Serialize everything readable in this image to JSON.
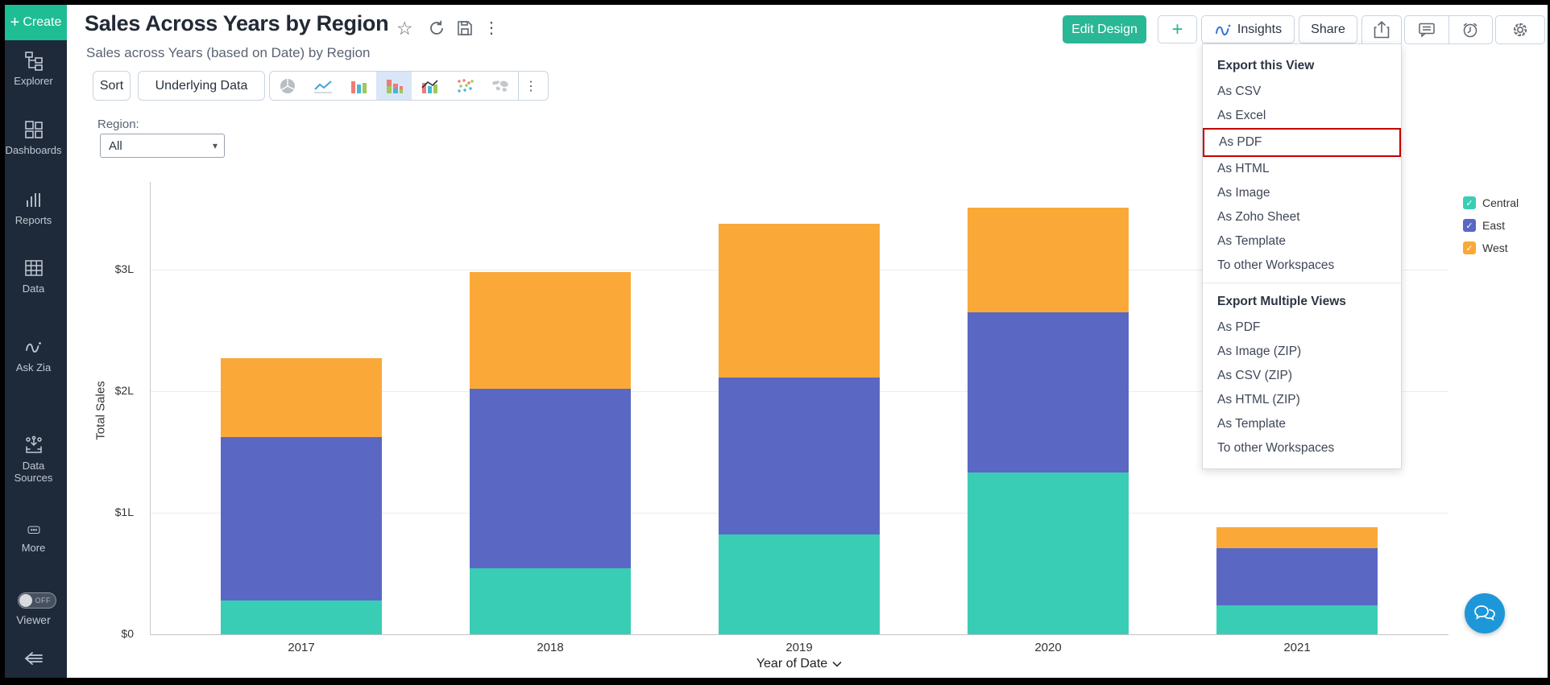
{
  "icons": {
    "plus": "+",
    "star": "☆",
    "kebab": "⋮",
    "caret_down": "▾",
    "check": "✓"
  },
  "colors": {
    "accent_teal": "#26B795",
    "sidebar_bg": "#1E2A3A",
    "selected_tile": "#D9E6F7",
    "chat_blue": "#1E97D9"
  },
  "sidebar": {
    "create_label": "Create",
    "items": [
      {
        "icon": "explorer-icon",
        "label": "Explorer"
      },
      {
        "icon": "dashboards-icon",
        "label": "Dashboards"
      },
      {
        "icon": "reports-icon",
        "label": "Reports"
      },
      {
        "icon": "data-icon",
        "label": "Data"
      },
      {
        "icon": "zia-icon",
        "label": "Ask Zia"
      },
      {
        "icon": "data-sources-icon",
        "label": "Data Sources"
      },
      {
        "icon": "more-icon",
        "label": "More"
      }
    ],
    "viewer_toggle": {
      "state": "OFF",
      "label": "Viewer"
    }
  },
  "header": {
    "title": "Sales Across Years by Region",
    "subtitle": "Sales across Years (based on Date) by Region"
  },
  "toolbar": {
    "sort_label": "Sort",
    "underlying_data_label": "Underlying Data",
    "chart_types": [
      "pie",
      "line",
      "bar",
      "stacked-bar",
      "combo",
      "scatter",
      "map"
    ],
    "selected_chart_type": "stacked-bar"
  },
  "filter": {
    "label": "Region:",
    "value": "All"
  },
  "actions": {
    "edit_design_label": "Edit Design",
    "add_label": "+",
    "insights_label": "Insights",
    "share_label": "Share"
  },
  "export_menu": {
    "highlight_color": "#C40000",
    "highlighted_item": "As PDF",
    "sections": [
      {
        "title": "Export this View",
        "items": [
          "As CSV",
          "As Excel",
          "As PDF",
          "As HTML",
          "As Image",
          "As Zoho Sheet",
          "As Template",
          "To other Workspaces"
        ]
      },
      {
        "title": "Export Multiple Views",
        "items": [
          "As PDF",
          "As Image (ZIP)",
          "As CSV (ZIP)",
          "As HTML (ZIP)",
          "As Template",
          "To other Workspaces"
        ]
      }
    ]
  },
  "chart_data": {
    "type": "bar",
    "stacked": true,
    "categories": [
      "2017",
      "2018",
      "2019",
      "2020",
      "2021"
    ],
    "series": [
      {
        "name": "Central",
        "color": "#3ACDB5",
        "values": [
          0.28,
          0.54,
          0.82,
          1.33,
          0.24
        ]
      },
      {
        "name": "East",
        "color": "#5A68C4",
        "values": [
          1.34,
          1.48,
          1.29,
          1.32,
          0.47
        ]
      },
      {
        "name": "West",
        "color": "#FAA939",
        "values": [
          0.65,
          0.96,
          1.27,
          0.86,
          0.17
        ]
      }
    ],
    "xlabel": "Year of Date",
    "ylabel": "Total Sales",
    "ytick_labels": [
      "$0",
      "$1L",
      "$2L",
      "$3L"
    ],
    "ylim": [
      0,
      3.7
    ],
    "legend_position": "right",
    "legend_checked": true,
    "grid": true
  }
}
